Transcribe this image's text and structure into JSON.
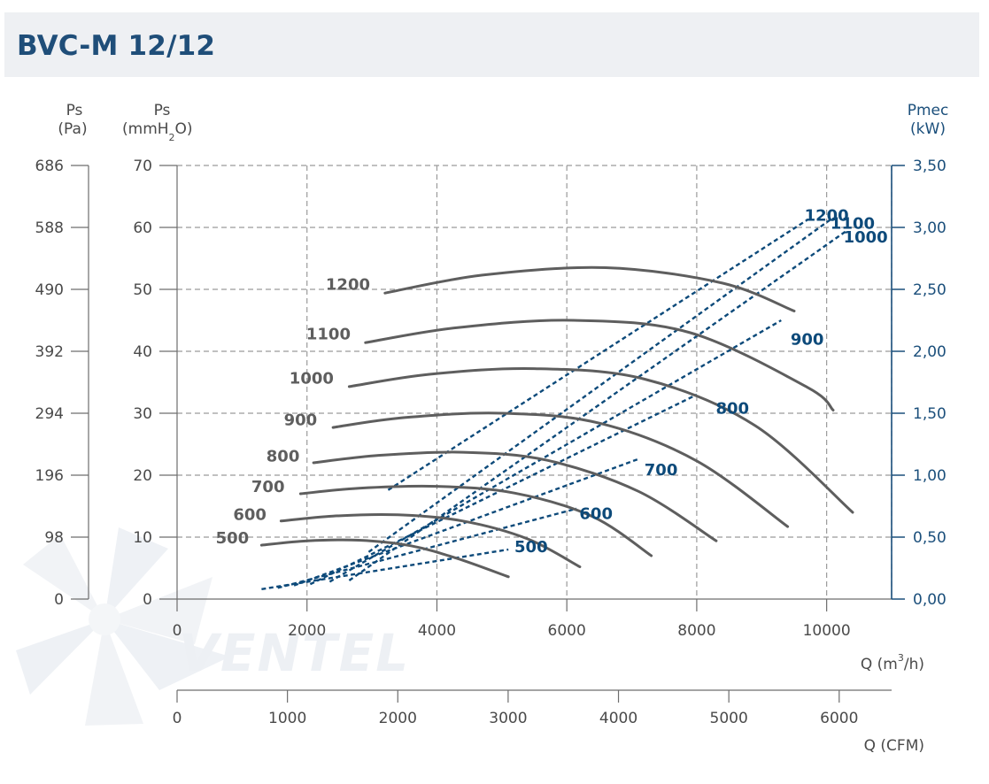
{
  "header": {
    "title": "BVC-M 12/12"
  },
  "watermark": {
    "text": "VENTEL",
    "color": "#edf0f4"
  },
  "colors": {
    "title": "#1f4e79",
    "band": "#eef0f3",
    "pressure_curve": "#5e5e5e",
    "power_curve": "#0d4a7a",
    "grid": "#9a9a9a",
    "axis_text": "#4a4a4a",
    "power_axis": "#1b4f7b"
  },
  "axis_headers": {
    "pa": {
      "line1": "Ps",
      "line2": "(Pa)"
    },
    "mmh2o": {
      "line1": "Ps",
      "line2_prefix": "(mmH",
      "subscript": "2",
      "line2_suffix": "O)"
    },
    "kw": {
      "line1": "Pmec",
      "line2": "(kW)"
    },
    "q_m3h": {
      "prefix": "Q (m",
      "superscript": "3",
      "suffix": "/h)"
    },
    "q_cfm": "Q (CFM)"
  },
  "chart_data": {
    "type": "line",
    "title": "BVC-M 12/12",
    "xlabel": "Q (m3/h)",
    "ylabel": "Ps (mmH2O)",
    "y2label": "Pmec (kW)",
    "xlim": [
      0,
      11000
    ],
    "ylim": [
      0,
      70
    ],
    "y2lim": [
      0,
      3.5
    ],
    "grid": true,
    "x_ticks": [
      "0",
      "2000",
      "4000",
      "6000",
      "8000",
      "10000"
    ],
    "x_tick_values": [
      0,
      2000,
      4000,
      6000,
      8000,
      10000
    ],
    "y_ticks": [
      "0",
      "10",
      "20",
      "30",
      "40",
      "50",
      "60",
      "70"
    ],
    "y_tick_values": [
      0,
      10,
      20,
      30,
      40,
      50,
      60,
      70
    ],
    "y_pa_ticks": [
      "0",
      "98",
      "196",
      "294",
      "392",
      "490",
      "588",
      "686"
    ],
    "y2_ticks": [
      "0,00",
      "0,50",
      "1,00",
      "1,50",
      "2,00",
      "2,50",
      "3,00",
      "3,50"
    ],
    "cfm_ticks": [
      "0",
      "1000",
      "2000",
      "3000",
      "4000",
      "5000",
      "6000"
    ],
    "cfm_tick_values": [
      0,
      1000,
      2000,
      3000,
      4000,
      5000,
      6000
    ],
    "cfm_lim": [
      0,
      6475
    ],
    "pressure_series": [
      {
        "name": "500",
        "x": [
          1300,
          2000,
          2800,
          3600,
          4300,
          5100
        ],
        "y": [
          8.7,
          9.4,
          9.5,
          8.6,
          6.6,
          3.6
        ],
        "label_q": 850,
        "label_ps": 9.0
      },
      {
        "name": "600",
        "x": [
          1600,
          2400,
          3400,
          4400,
          5400,
          6200
        ],
        "y": [
          12.6,
          13.4,
          13.6,
          12.6,
          9.7,
          5.2
        ],
        "label_q": 1120,
        "label_ps": 12.8
      },
      {
        "name": "700",
        "x": [
          1900,
          2800,
          4000,
          5200,
          6400,
          7300
        ],
        "y": [
          17.0,
          17.9,
          18.2,
          17.1,
          13.3,
          7.0
        ],
        "label_q": 1400,
        "label_ps": 17.3
      },
      {
        "name": "800",
        "x": [
          2100,
          3100,
          4400,
          5700,
          7100,
          8300
        ],
        "y": [
          22.0,
          23.2,
          23.7,
          22.4,
          17.4,
          9.4
        ],
        "label_q": 1630,
        "label_ps": 22.2
      },
      {
        "name": "900",
        "x": [
          2400,
          3500,
          5000,
          6500,
          8000,
          9400
        ],
        "y": [
          27.7,
          29.3,
          30.0,
          28.4,
          22.3,
          11.7
        ],
        "label_q": 1900,
        "label_ps": 28.1
      },
      {
        "name": "1000",
        "x": [
          2650,
          3900,
          5500,
          7200,
          8900,
          10400
        ],
        "y": [
          34.3,
          36.3,
          37.2,
          35.5,
          28.0,
          14.0
        ],
        "label_q": 2070,
        "label_ps": 34.8
      },
      {
        "name": "1100",
        "x": [
          2900,
          4300,
          6100,
          7900,
          9700,
          10100
        ],
        "y": [
          41.4,
          43.8,
          45.0,
          43.0,
          34.2,
          30.5
        ],
        "label_q": 2330,
        "label_ps": 41.9
      },
      {
        "name": "1200",
        "x": [
          3200,
          4700,
          6600,
          8400,
          9500
        ],
        "y": [
          49.4,
          52.3,
          53.5,
          51.0,
          46.5
        ],
        "label_q": 2630,
        "label_ps": 49.9
      }
    ],
    "power_series": [
      {
        "name": "500",
        "x": [
          1300,
          5100
        ],
        "y": [
          0.08,
          0.4
        ],
        "label_q": 5450,
        "label_ps": 7.6
      },
      {
        "name": "600",
        "x": [
          1550,
          6150
        ],
        "y": [
          0.09,
          0.73
        ],
        "label_q": 6450,
        "label_ps": 12.9
      },
      {
        "name": "700",
        "x": [
          1800,
          7100
        ],
        "y": [
          0.11,
          1.13
        ],
        "label_q": 7450,
        "label_ps": 20.0
      },
      {
        "name": "800",
        "x": [
          2050,
          8000
        ],
        "y": [
          0.12,
          1.65
        ],
        "label_q": 8550,
        "label_ps": 29.9
      },
      {
        "name": "900",
        "x": [
          2350,
          9300
        ],
        "y": [
          0.14,
          2.25
        ],
        "label_q": 9700,
        "label_ps": 41.1
      },
      {
        "name": "1000",
        "x": [
          2650,
          10300
        ],
        "y": [
          0.15,
          2.97
        ],
        "label_q": 10600,
        "label_ps": 57.6
      },
      {
        "name": "1100",
        "x": [
          2950,
          10050
        ],
        "y": [
          0.38,
          3.06
        ],
        "label_q": 10400,
        "label_ps": 59.8
      },
      {
        "name": "1200",
        "x": [
          3250,
          9700
        ],
        "y": [
          0.88,
          3.06
        ],
        "label_q": 10000,
        "label_ps": 61.1
      }
    ]
  }
}
